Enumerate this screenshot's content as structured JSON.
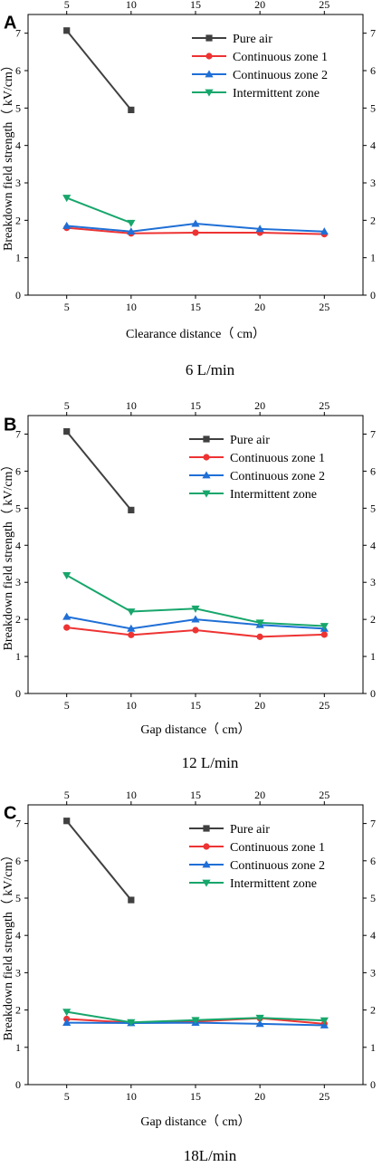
{
  "chart_data": [
    {
      "type": "line",
      "panel": "A",
      "xlabel": "Clearance distance（ cm）",
      "ylabel": "Breakdown field strength（ kV/cm）",
      "caption": "6 L/min",
      "x_ticks": [
        "5",
        "10",
        "15",
        "20",
        "25"
      ],
      "y_ticks": [
        "0",
        "1",
        "2",
        "3",
        "4",
        "5",
        "6",
        "7"
      ],
      "xlim": [
        2,
        28
      ],
      "ylim": [
        0,
        7.5
      ],
      "legend_position": "top-right",
      "series": [
        {
          "name": "Pure air",
          "color": "#404040",
          "marker": "square",
          "x": [
            5,
            10
          ],
          "values": [
            7.07,
            4.95
          ]
        },
        {
          "name": "Continuous zone 1",
          "color": "#ee3333",
          "marker": "circle",
          "x": [
            5,
            10,
            15,
            20,
            25
          ],
          "values": [
            1.8,
            1.65,
            1.67,
            1.67,
            1.63
          ]
        },
        {
          "name": "Continuous zone 2",
          "color": "#1f6fd6",
          "marker": "triangle-up",
          "x": [
            5,
            10,
            15,
            20,
            25
          ],
          "values": [
            1.85,
            1.7,
            1.91,
            1.77,
            1.7
          ]
        },
        {
          "name": "Intermittent zone",
          "color": "#17a66b",
          "marker": "triangle-down",
          "x": [
            5,
            10
          ],
          "values": [
            2.6,
            1.93
          ]
        }
      ]
    },
    {
      "type": "line",
      "panel": "B",
      "xlabel": "Gap distance（ cm）",
      "ylabel": "Breakdown field strength（ kV/cm）",
      "caption": "12 L/min",
      "x_ticks": [
        "5",
        "10",
        "15",
        "20",
        "25"
      ],
      "y_ticks": [
        "0",
        "1",
        "2",
        "3",
        "4",
        "5",
        "6",
        "7"
      ],
      "xlim": [
        2,
        28
      ],
      "ylim": [
        0,
        7.5
      ],
      "legend_position": "top-right",
      "series": [
        {
          "name": "Pure air",
          "color": "#404040",
          "marker": "square",
          "x": [
            5,
            10
          ],
          "values": [
            7.07,
            4.95
          ]
        },
        {
          "name": "Continuous zone 1",
          "color": "#ee3333",
          "marker": "circle",
          "x": [
            5,
            10,
            15,
            20,
            25
          ],
          "values": [
            1.78,
            1.58,
            1.71,
            1.53,
            1.59
          ]
        },
        {
          "name": "Continuous zone 2",
          "color": "#1f6fd6",
          "marker": "triangle-up",
          "x": [
            5,
            10,
            15,
            20,
            25
          ],
          "values": [
            2.07,
            1.75,
            2.0,
            1.85,
            1.75
          ]
        },
        {
          "name": "Intermittent zone",
          "color": "#17a66b",
          "marker": "triangle-down",
          "x": [
            5,
            10,
            15,
            20,
            25
          ],
          "values": [
            3.19,
            2.21,
            2.29,
            1.91,
            1.82
          ]
        }
      ]
    },
    {
      "type": "line",
      "panel": "C",
      "xlabel": "Gap distance（ cm）",
      "ylabel": "Breakdown field strength（ kV/cm）",
      "caption": "18L/min",
      "x_ticks": [
        "5",
        "10",
        "15",
        "20",
        "25"
      ],
      "y_ticks": [
        "0",
        "1",
        "2",
        "3",
        "4",
        "5",
        "6",
        "7"
      ],
      "xlim": [
        2,
        28
      ],
      "ylim": [
        0,
        7.5
      ],
      "legend_position": "top-right",
      "series": [
        {
          "name": "Pure air",
          "color": "#404040",
          "marker": "square",
          "x": [
            5,
            10
          ],
          "values": [
            7.07,
            4.95
          ]
        },
        {
          "name": "Continuous zone 1",
          "color": "#ee3333",
          "marker": "circle",
          "x": [
            5,
            10,
            15,
            20,
            25
          ],
          "values": [
            1.76,
            1.66,
            1.69,
            1.78,
            1.63
          ]
        },
        {
          "name": "Continuous zone 2",
          "color": "#1f6fd6",
          "marker": "triangle-up",
          "x": [
            5,
            10,
            15,
            20,
            25
          ],
          "values": [
            1.66,
            1.65,
            1.66,
            1.63,
            1.59
          ]
        },
        {
          "name": "Intermittent zone",
          "color": "#17a66b",
          "marker": "triangle-down",
          "x": [
            5,
            10,
            15,
            20,
            25
          ],
          "values": [
            1.95,
            1.67,
            1.73,
            1.79,
            1.72
          ]
        }
      ]
    }
  ]
}
